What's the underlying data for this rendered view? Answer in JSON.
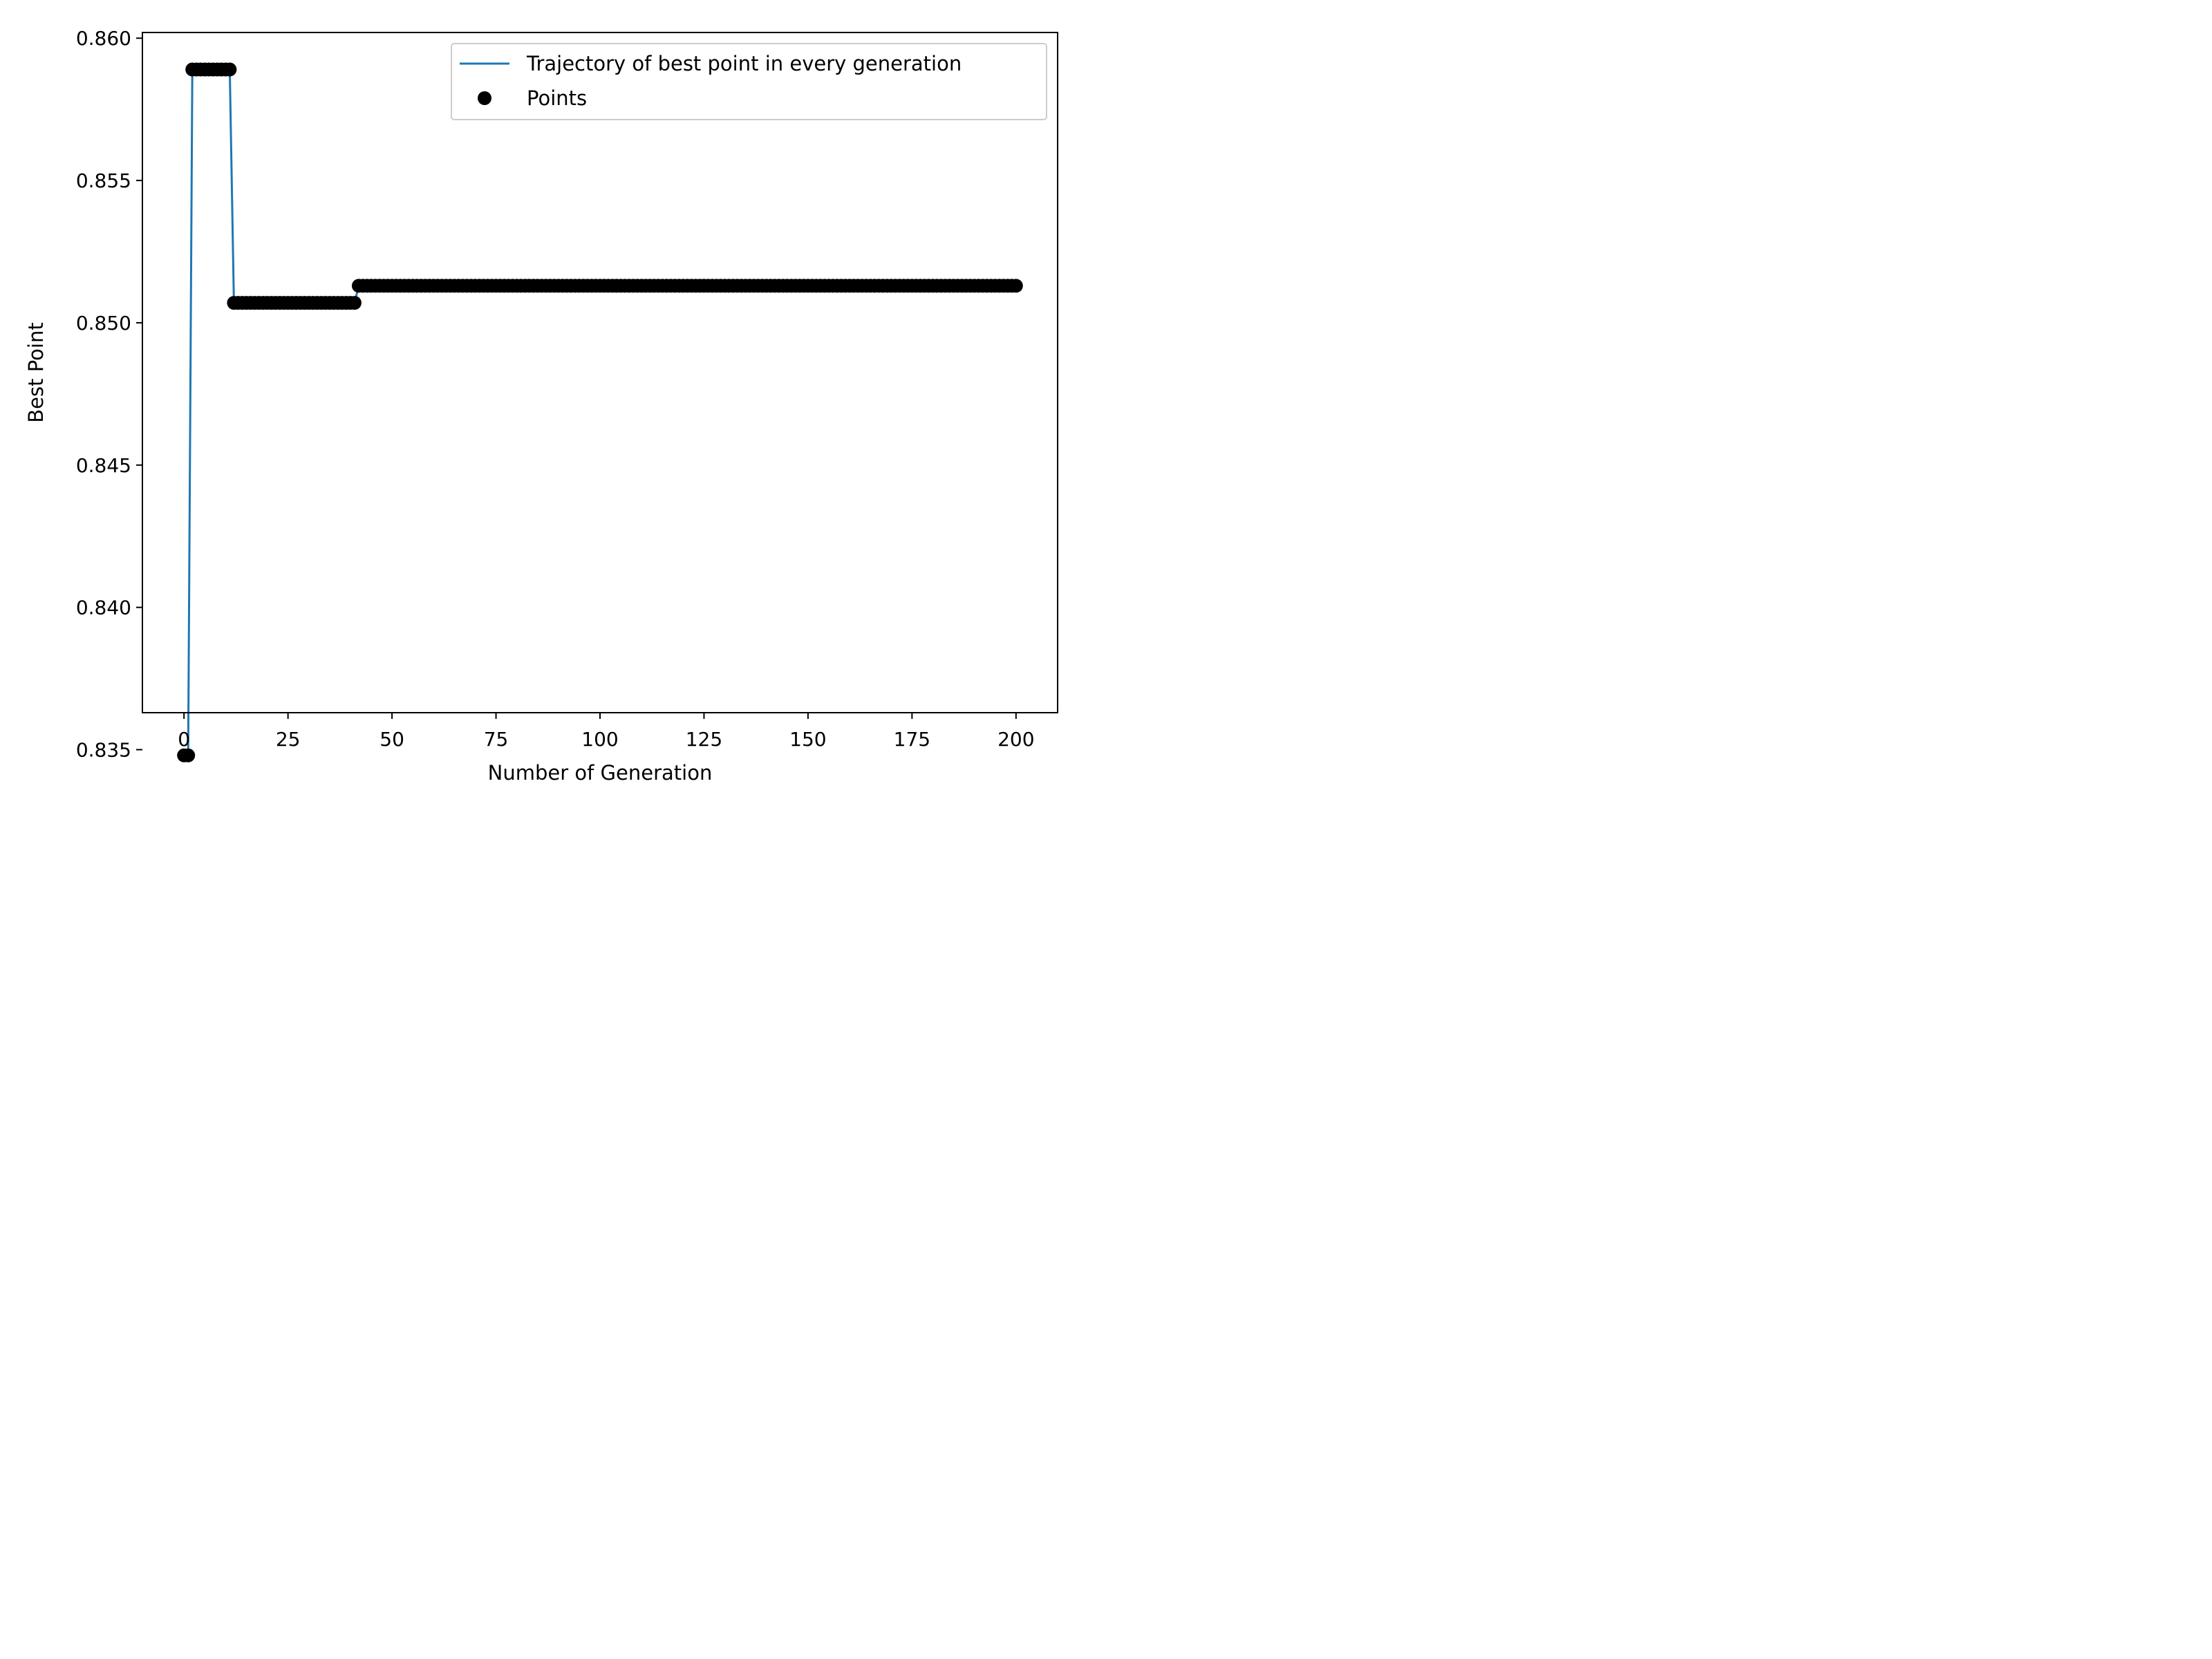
{
  "chart_data": {
    "type": "line",
    "title": "",
    "xlabel": "Number of Generation",
    "ylabel": "Best Point",
    "xlim": [
      -10,
      210
    ],
    "ylim": [
      0.8363,
      0.8602
    ],
    "xticks": [
      0,
      25,
      50,
      75,
      100,
      125,
      150,
      175,
      200
    ],
    "xtick_labels": [
      "0",
      "25",
      "50",
      "75",
      "100",
      "125",
      "150",
      "175",
      "200"
    ],
    "yticks": [
      0.835,
      0.84,
      0.845,
      0.85,
      0.855,
      0.86
    ],
    "ytick_labels": [
      "0.835",
      "0.840",
      "0.845",
      "0.850",
      "0.855",
      "0.860"
    ],
    "grid": false,
    "legend_position": "top-right",
    "segments": [
      {
        "from": 0,
        "to": 1,
        "value": 0.8348
      },
      {
        "from": 2,
        "to": 11,
        "value": 0.8589
      },
      {
        "from": 12,
        "to": 41,
        "value": 0.8507
      },
      {
        "from": 42,
        "to": 200,
        "value": 0.8513
      }
    ],
    "series": [
      {
        "name": "Trajectory of best point in every generation",
        "kind": "line",
        "color": "#1f77b4"
      },
      {
        "name": "Points",
        "kind": "markers",
        "color": "#000000"
      }
    ]
  }
}
